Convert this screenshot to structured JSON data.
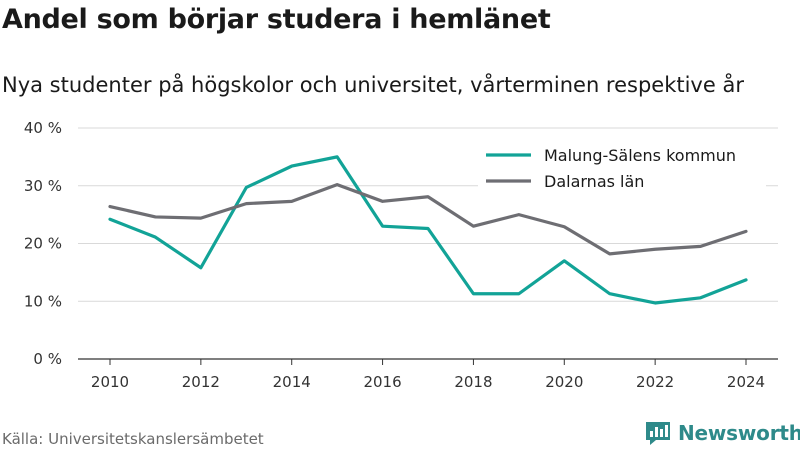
{
  "header": {
    "title": "Andel som börjar studera i hemlänet",
    "subtitle": "Nya studenter på högskolor och universitet, vårterminen respektive år"
  },
  "footer": {
    "source": "Källa: Universitetskanslersämbetet",
    "brand": "Newsworthy"
  },
  "colors": {
    "malung": "#12a397",
    "dalarna": "#6e6e73",
    "grid": "#d9d9d9",
    "brand": "#2e8a8a"
  },
  "icons": {
    "brand": "chart-bars-icon"
  },
  "chart_data": {
    "type": "line",
    "x": [
      2010,
      2011,
      2012,
      2013,
      2014,
      2015,
      2016,
      2017,
      2018,
      2019,
      2020,
      2021,
      2022,
      2023,
      2024
    ],
    "xticks": [
      2010,
      2012,
      2014,
      2016,
      2018,
      2020,
      2022,
      2024
    ],
    "xtick_labels": [
      "2010",
      "2012",
      "2014",
      "2016",
      "2018",
      "2020",
      "2022",
      "2024"
    ],
    "ylim": [
      0,
      40
    ],
    "yticks": [
      0,
      10,
      20,
      30,
      40
    ],
    "ytick_labels": [
      "0 %",
      "10 %",
      "20 %",
      "30 %",
      "40 %"
    ],
    "xlim": [
      2010,
      2024
    ],
    "grid": true,
    "legend_position": "top-right",
    "series": [
      {
        "name": "Malung-Sälens kommun",
        "values": [
          24.2,
          21.1,
          15.8,
          29.7,
          33.4,
          35.0,
          23.0,
          22.6,
          11.3,
          11.3,
          17.0,
          11.3,
          9.7,
          10.6,
          13.7
        ]
      },
      {
        "name": "Dalarnas län",
        "values": [
          26.4,
          24.6,
          24.4,
          26.9,
          27.3,
          30.2,
          27.3,
          28.1,
          23.0,
          25.0,
          22.9,
          18.2,
          19.0,
          19.5,
          22.1
        ]
      }
    ]
  }
}
